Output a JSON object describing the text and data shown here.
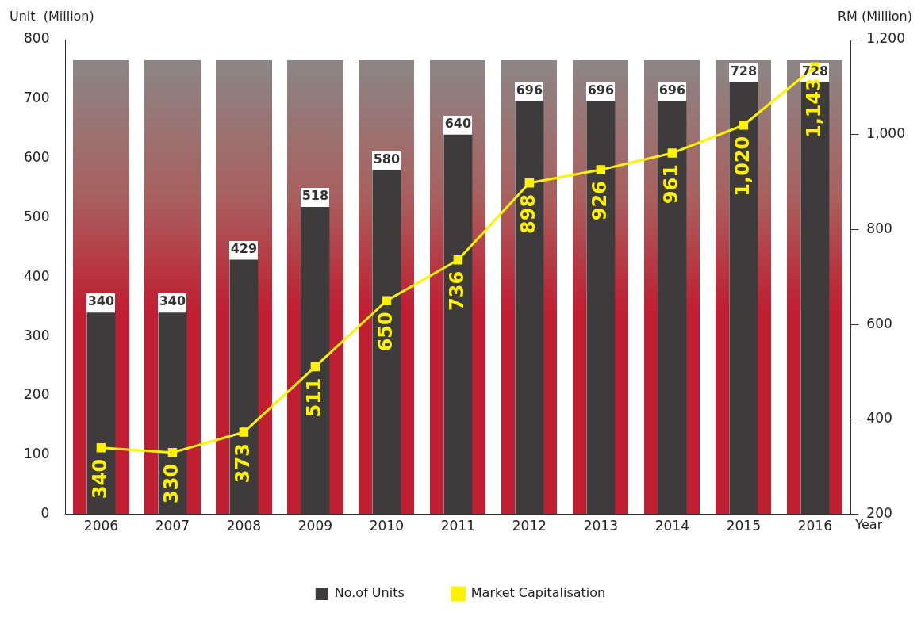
{
  "chart_data": {
    "type": "bar",
    "categories": [
      "2006",
      "2007",
      "2008",
      "2009",
      "2010",
      "2011",
      "2012",
      "2013",
      "2014",
      "2015",
      "2016"
    ],
    "xlabel": "Year",
    "ylabel": "Unit  (Million)",
    "y2label": "RM (Million)",
    "ylim": [
      0,
      800
    ],
    "yticks": [
      0,
      100,
      200,
      300,
      400,
      500,
      600,
      700,
      800
    ],
    "y2lim": [
      200,
      1200
    ],
    "y2ticks": [
      200,
      400,
      600,
      800,
      {
        "value": 1000,
        "label": "1,000"
      },
      {
        "value": 1200,
        "label": "1,200"
      }
    ],
    "series": [
      {
        "name": "No.of Units",
        "type": "bar",
        "color": "#3d3b3c",
        "values": [
          340,
          340,
          429,
          518,
          580,
          640,
          696,
          696,
          696,
          728,
          728
        ],
        "value_labels": [
          "340",
          "340",
          "429",
          "518",
          "580",
          "640",
          "696",
          "696",
          "696",
          "728",
          "728"
        ]
      },
      {
        "name": "Market Capitalisation",
        "type": "line",
        "axis": "y2",
        "color": "#fff200",
        "marker": "square",
        "values": [
          340,
          330,
          373,
          511,
          650,
          736,
          898,
          926,
          961,
          1020,
          1143
        ],
        "value_labels": [
          "340",
          "330",
          "373",
          "511",
          "650",
          "736",
          "898",
          "926",
          "961",
          "1,020",
          "1,143"
        ]
      }
    ],
    "legend": "bottom",
    "grid": false
  }
}
